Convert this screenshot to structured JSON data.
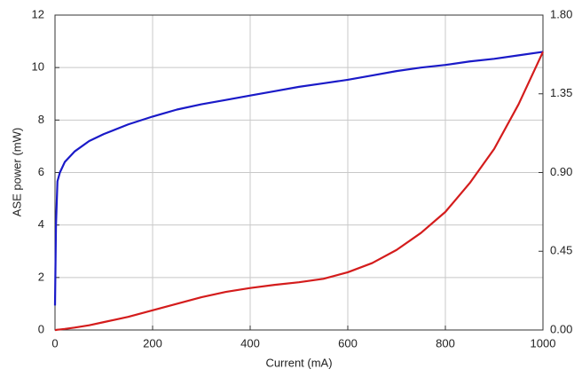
{
  "chart_data": {
    "type": "line",
    "x_label": "Current (mA)",
    "y_label": "ASE power (mW)",
    "x": [
      0,
      2,
      5,
      10,
      20,
      40,
      70,
      100,
      150,
      200,
      250,
      300,
      350,
      400,
      450,
      500,
      550,
      600,
      650,
      700,
      750,
      800,
      850,
      900,
      950,
      1000
    ],
    "series": [
      {
        "color": "#1a1ac8",
        "axis": "y2",
        "values": [
          0.14,
          0.6,
          0.85,
          0.9,
          0.96,
          1.02,
          1.08,
          1.12,
          1.175,
          1.22,
          1.26,
          1.29,
          1.315,
          1.34,
          1.365,
          1.39,
          1.41,
          1.43,
          1.455,
          1.48,
          1.5,
          1.515,
          1.535,
          1.55,
          1.57,
          1.59
        ]
      },
      {
        "color": "#d41c1c",
        "values": [
          0,
          0,
          0.01,
          0.02,
          0.04,
          0.09,
          0.18,
          0.3,
          0.5,
          0.75,
          1.0,
          1.25,
          1.45,
          1.6,
          1.72,
          1.82,
          1.95,
          2.2,
          2.55,
          3.05,
          3.7,
          4.5,
          5.6,
          6.9,
          8.6,
          10.6
        ]
      }
    ],
    "xlim": [
      0,
      1000
    ],
    "xticks": [
      0,
      200,
      400,
      600,
      800,
      1000
    ],
    "ylim": [
      0,
      12
    ],
    "yticks": [
      0,
      2,
      4,
      6,
      8,
      10,
      12
    ],
    "y2lim": [
      0,
      1.8
    ],
    "y2ticks": [
      {
        "value": 0,
        "label": "0.00"
      },
      0.45,
      {
        "value": 0.9,
        "label": "0.90"
      },
      1.35,
      {
        "value": 1.8,
        "label": "1.80"
      }
    ],
    "grid": true
  }
}
